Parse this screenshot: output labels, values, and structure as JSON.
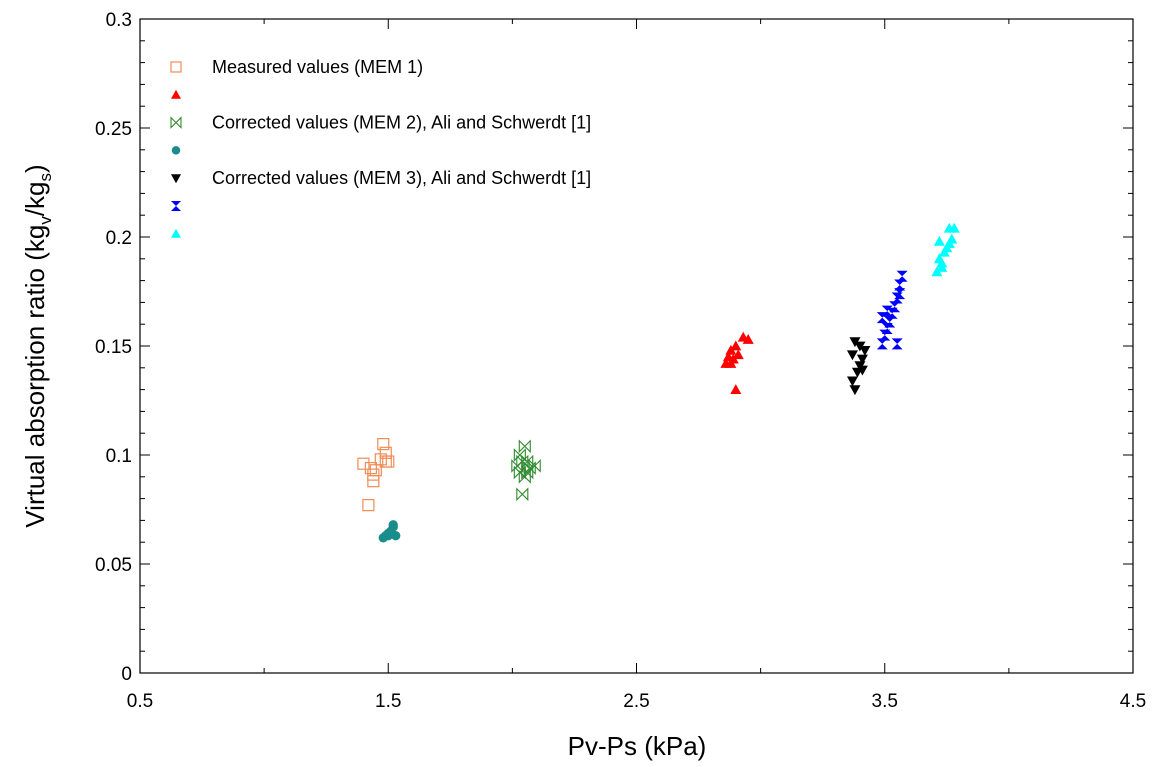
{
  "chart_data": {
    "type": "scatter",
    "title": "",
    "xlabel": "Pv-Ps (kPa)",
    "ylabel": "Virtual absorption ratio (kg",
    "ylabel_sub1": "v",
    "ylabel_mid": "/kg",
    "ylabel_sub2": "s",
    "ylabel_end": ")",
    "xlim": [
      0.5,
      4.5
    ],
    "ylim": [
      0,
      0.3
    ],
    "xticks": [
      "0.5",
      "1.5",
      "2.5",
      "3.5",
      "4.5"
    ],
    "yticks": [
      "0",
      "0.05",
      "0.1",
      "0.15",
      "0.2",
      "0.25",
      "0.3"
    ],
    "grid": false,
    "legend_position": "top-left",
    "series": [
      {
        "name": "Measured values (MEM 1)",
        "marker": "square-open",
        "color": "#f08c55",
        "points": [
          [
            1.42,
            0.077
          ],
          [
            1.4,
            0.096
          ],
          [
            1.43,
            0.094
          ],
          [
            1.44,
            0.091
          ],
          [
            1.44,
            0.088
          ],
          [
            1.45,
            0.093
          ],
          [
            1.47,
            0.098
          ],
          [
            1.48,
            0.105
          ],
          [
            1.49,
            0.101
          ],
          [
            1.49,
            0.097
          ],
          [
            1.5,
            0.097
          ]
        ]
      },
      {
        "name": "",
        "marker": "triangle-up",
        "color": "#ff0000",
        "points": [
          [
            2.9,
            0.13
          ],
          [
            2.86,
            0.142
          ],
          [
            2.87,
            0.145
          ],
          [
            2.88,
            0.148
          ],
          [
            2.89,
            0.144
          ],
          [
            2.9,
            0.15
          ],
          [
            2.91,
            0.146
          ],
          [
            2.93,
            0.154
          ],
          [
            2.95,
            0.153
          ],
          [
            2.88,
            0.142
          ]
        ]
      },
      {
        "name": "Corrected values (MEM 2), Ali and Schwerdt [1]",
        "marker": "bowtie-open",
        "color": "#2e8b2e",
        "points": [
          [
            2.04,
            0.082
          ],
          [
            2.03,
            0.092
          ],
          [
            2.02,
            0.095
          ],
          [
            2.03,
            0.1
          ],
          [
            2.05,
            0.104
          ],
          [
            2.06,
            0.097
          ],
          [
            2.07,
            0.094
          ],
          [
            2.05,
            0.09
          ],
          [
            2.09,
            0.095
          ],
          [
            2.04,
            0.097
          ],
          [
            2.06,
            0.092
          ]
        ]
      },
      {
        "name": "",
        "marker": "circle",
        "color": "#1a8c8c",
        "points": [
          [
            1.48,
            0.062
          ],
          [
            1.49,
            0.063
          ],
          [
            1.5,
            0.064
          ],
          [
            1.51,
            0.065
          ],
          [
            1.52,
            0.067
          ],
          [
            1.52,
            0.068
          ],
          [
            1.53,
            0.063
          ],
          [
            1.5,
            0.063
          ]
        ]
      },
      {
        "name": "Corrected values (MEM 3), Ali and Schwerdt [1]",
        "marker": "triangle-down",
        "color": "#000000",
        "points": [
          [
            3.38,
            0.13
          ],
          [
            3.37,
            0.134
          ],
          [
            3.39,
            0.138
          ],
          [
            3.4,
            0.141
          ],
          [
            3.41,
            0.144
          ],
          [
            3.37,
            0.146
          ],
          [
            3.38,
            0.152
          ],
          [
            3.4,
            0.15
          ],
          [
            3.42,
            0.148
          ],
          [
            3.41,
            0.139
          ]
        ]
      },
      {
        "name": "",
        "marker": "hourglass",
        "color": "#0000ff",
        "points": [
          [
            3.49,
            0.151
          ],
          [
            3.5,
            0.155
          ],
          [
            3.51,
            0.158
          ],
          [
            3.52,
            0.161
          ],
          [
            3.53,
            0.165
          ],
          [
            3.54,
            0.168
          ],
          [
            3.55,
            0.172
          ],
          [
            3.56,
            0.174
          ],
          [
            3.56,
            0.178
          ],
          [
            3.57,
            0.182
          ],
          [
            3.49,
            0.163
          ],
          [
            3.51,
            0.166
          ],
          [
            3.55,
            0.151
          ]
        ]
      },
      {
        "name": "",
        "marker": "triangle-up",
        "color": "#00ffff",
        "points": [
          [
            3.71,
            0.184
          ],
          [
            3.73,
            0.186
          ],
          [
            3.72,
            0.19
          ],
          [
            3.74,
            0.193
          ],
          [
            3.75,
            0.195
          ],
          [
            3.76,
            0.197
          ],
          [
            3.72,
            0.198
          ],
          [
            3.77,
            0.199
          ],
          [
            3.78,
            0.204
          ],
          [
            3.76,
            0.204
          ],
          [
            3.73,
            0.188
          ]
        ]
      }
    ]
  }
}
